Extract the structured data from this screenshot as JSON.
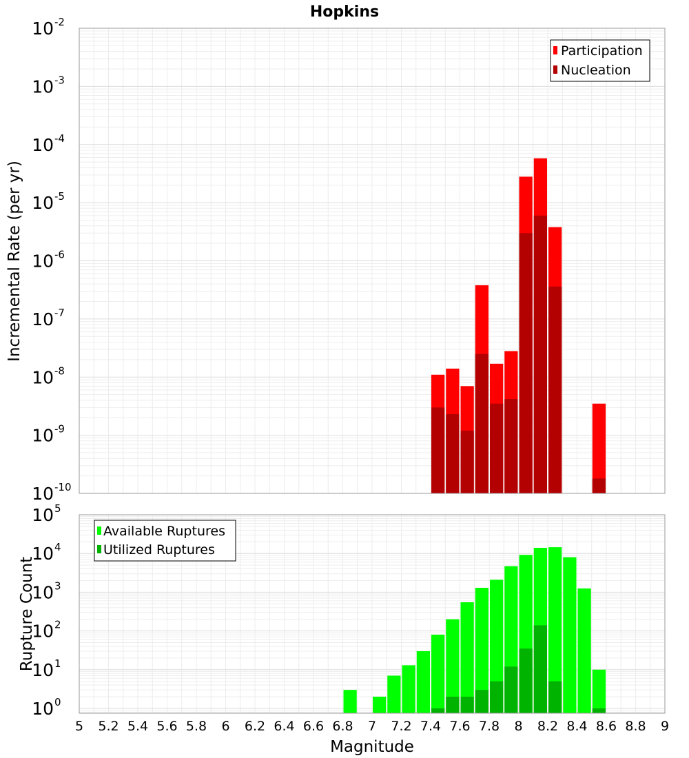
{
  "figure_title": "Hopkins",
  "x_axis_label": "Magnitude",
  "chart_data": [
    {
      "type": "bar",
      "ylabel": "Incremental Rate (per yr)",
      "yscale": "log",
      "ylim": [
        1e-10,
        0.01
      ],
      "xlim": [
        5,
        9
      ],
      "x_ticks": [
        "5",
        "5.2",
        "5.4",
        "5.6",
        "5.8",
        "6",
        "6.2",
        "6.4",
        "6.6",
        "6.8",
        "7",
        "7.2",
        "7.4",
        "7.6",
        "7.8",
        "8",
        "8.2",
        "8.4",
        "8.6",
        "8.8",
        "9"
      ],
      "y_ticks": [
        {
          "base": "10",
          "exp": "-10",
          "value": 1e-10
        },
        {
          "base": "10",
          "exp": "-9",
          "value": 1e-09
        },
        {
          "base": "10",
          "exp": "-8",
          "value": 1e-08
        },
        {
          "base": "10",
          "exp": "-7",
          "value": 1e-07
        },
        {
          "base": "10",
          "exp": "-6",
          "value": 1e-06
        },
        {
          "base": "10",
          "exp": "-5",
          "value": 1e-05
        },
        {
          "base": "10",
          "exp": "-4",
          "value": 0.0001
        },
        {
          "base": "10",
          "exp": "-3",
          "value": 0.001
        },
        {
          "base": "10",
          "exp": "-2",
          "value": 0.01
        }
      ],
      "legend_position": "top-right",
      "grid": true,
      "bar_width": 0.1,
      "x": [
        7.45,
        7.55,
        7.65,
        7.75,
        7.85,
        7.95,
        8.05,
        8.15,
        8.25,
        8.55
      ],
      "series": [
        {
          "name": "Participation",
          "color": "#ff0000",
          "values": [
            1.1e-08,
            1.4e-08,
            7e-09,
            3.8e-07,
            1.7e-08,
            2.8e-08,
            2.8e-05,
            5.8e-05,
            3.8e-06,
            3.5e-09
          ]
        },
        {
          "name": "Nucleation",
          "color": "#b30000",
          "values": [
            3e-09,
            2.3e-09,
            1.2e-09,
            2.5e-08,
            3.5e-09,
            4.2e-09,
            3e-06,
            6e-06,
            3.6e-07,
            1.8e-10
          ]
        }
      ]
    },
    {
      "type": "bar",
      "ylabel": "Rupture Count",
      "yscale": "log",
      "ylim": [
        0.75,
        100000.0
      ],
      "xlim": [
        5,
        9
      ],
      "y_ticks": [
        {
          "base": "10",
          "exp": "0",
          "value": 1
        },
        {
          "base": "10",
          "exp": "1",
          "value": 10
        },
        {
          "base": "10",
          "exp": "2",
          "value": 100
        },
        {
          "base": "10",
          "exp": "3",
          "value": 1000
        },
        {
          "base": "10",
          "exp": "4",
          "value": 10000
        },
        {
          "base": "10",
          "exp": "5",
          "value": 100000
        }
      ],
      "legend_position": "top-left",
      "grid": true,
      "bar_width": 0.1,
      "x": [
        6.85,
        7.05,
        7.15,
        7.25,
        7.35,
        7.45,
        7.55,
        7.65,
        7.75,
        7.85,
        7.95,
        8.05,
        8.15,
        8.25,
        8.35,
        8.45,
        8.55
      ],
      "series": [
        {
          "name": "Available Ruptures",
          "color": "#00ff00",
          "values": [
            3,
            2,
            7,
            13,
            30,
            80,
            200,
            550,
            1300,
            2100,
            4700,
            9200,
            14000,
            14500,
            8000,
            1250,
            10
          ]
        },
        {
          "name": "Utilized Ruptures",
          "color": "#00b300",
          "values": [
            0,
            0,
            0,
            0,
            0,
            1,
            2,
            2,
            3,
            5,
            12,
            35,
            140,
            5,
            0,
            0,
            1
          ]
        }
      ]
    }
  ]
}
